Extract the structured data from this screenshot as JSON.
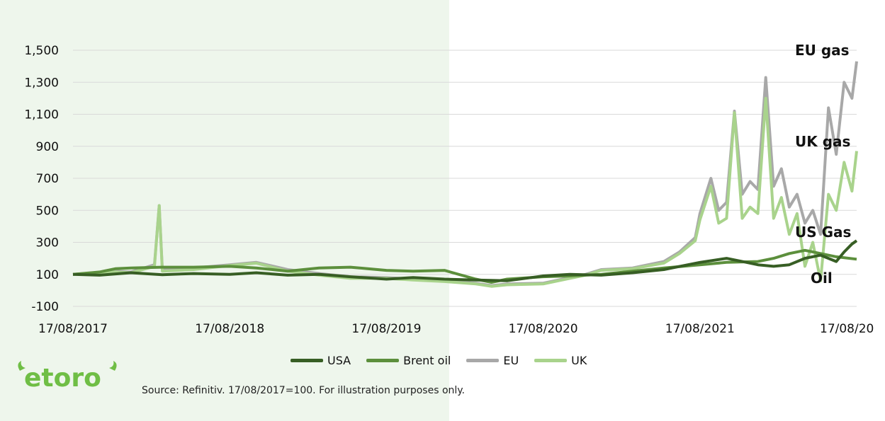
{
  "colors": {
    "highlight_band": "#eef6ec",
    "usa": "#375e24",
    "brent": "#5c8f3c",
    "eu": "#a8a8a8",
    "uk": "#a9d38c",
    "grid": "#d9d9d9",
    "logo": "#6fbe45"
  },
  "logo": {
    "name": "etoro-logo",
    "text": "etoro"
  },
  "source_note": "Source: Refinitiv. 17/08/2017=100. For illustration purposes only.",
  "annotations": {
    "eu": "EU gas",
    "uk": "UK gas",
    "us": "US Gas",
    "oil": "Oil"
  },
  "chart_data": {
    "type": "line",
    "x_tick_labels": [
      "17/08/2017",
      "17/08/2018",
      "17/08/2019",
      "17/08/2020",
      "17/08/2021",
      "17/08/20"
    ],
    "y_tick_labels": [
      "-100",
      "100",
      "300",
      "500",
      "700",
      "900",
      "1,100",
      "1,300",
      "1,500"
    ],
    "ylim": [
      -100,
      1500
    ],
    "xlim": [
      2017.63,
      2022.63
    ],
    "highlight_range": [
      2017.63,
      2020.03
    ],
    "grid": true,
    "legend_position": "bottom",
    "series": [
      {
        "name": "USA",
        "color_key": "usa",
        "x": [
          2017.63,
          2017.8,
          2018.0,
          2018.2,
          2018.4,
          2018.63,
          2018.8,
          2019.0,
          2019.2,
          2019.4,
          2019.63,
          2019.8,
          2020.0,
          2020.2,
          2020.4,
          2020.63,
          2020.8,
          2021.0,
          2021.2,
          2021.4,
          2021.63,
          2021.8,
          2021.9,
          2022.0,
          2022.1,
          2022.2,
          2022.3,
          2022.4,
          2022.5,
          2022.55,
          2022.6,
          2022.63
        ],
        "y": [
          100,
          95,
          110,
          98,
          105,
          100,
          110,
          95,
          100,
          85,
          70,
          80,
          70,
          65,
          60,
          90,
          100,
          95,
          110,
          130,
          175,
          200,
          180,
          160,
          150,
          160,
          200,
          220,
          180,
          240,
          290,
          310
        ]
      },
      {
        "name": "Brent oil",
        "color_key": "brent",
        "x": [
          2017.63,
          2017.8,
          2017.9,
          2018.0,
          2018.2,
          2018.4,
          2018.63,
          2018.8,
          2019.0,
          2019.2,
          2019.4,
          2019.63,
          2019.8,
          2020.0,
          2020.2,
          2020.3,
          2020.4,
          2020.63,
          2020.8,
          2021.0,
          2021.2,
          2021.4,
          2021.63,
          2021.8,
          2022.0,
          2022.1,
          2022.2,
          2022.3,
          2022.4,
          2022.5,
          2022.63
        ],
        "y": [
          100,
          115,
          135,
          140,
          145,
          145,
          150,
          140,
          120,
          140,
          145,
          125,
          120,
          125,
          70,
          50,
          70,
          85,
          90,
          100,
          120,
          140,
          160,
          175,
          180,
          200,
          230,
          250,
          230,
          210,
          195
        ]
      },
      {
        "name": "EU",
        "color_key": "eu",
        "x": [
          2017.63,
          2017.9,
          2018.0,
          2018.15,
          2018.18,
          2018.2,
          2018.4,
          2018.63,
          2018.8,
          2019.0,
          2019.2,
          2019.4,
          2019.63,
          2019.8,
          2020.0,
          2020.2,
          2020.3,
          2020.4,
          2020.63,
          2020.8,
          2020.9,
          2021.0,
          2021.2,
          2021.4,
          2021.5,
          2021.6,
          2021.63,
          2021.7,
          2021.75,
          2021.8,
          2021.85,
          2021.9,
          2021.95,
          2022.0,
          2022.05,
          2022.1,
          2022.15,
          2022.2,
          2022.25,
          2022.3,
          2022.35,
          2022.4,
          2022.45,
          2022.5,
          2022.55,
          2022.6,
          2022.63
        ],
        "y": [
          100,
          120,
          115,
          160,
          530,
          130,
          140,
          160,
          175,
          130,
          105,
          85,
          80,
          70,
          60,
          45,
          30,
          40,
          45,
          80,
          100,
          130,
          140,
          180,
          240,
          330,
          480,
          700,
          500,
          550,
          1120,
          600,
          680,
          630,
          1330,
          650,
          760,
          520,
          600,
          420,
          500,
          350,
          1140,
          850,
          1300,
          1200,
          1430
        ]
      },
      {
        "name": "UK",
        "color_key": "uk",
        "x": [
          2017.63,
          2017.9,
          2018.0,
          2018.15,
          2018.18,
          2018.2,
          2018.4,
          2018.63,
          2018.8,
          2019.0,
          2019.2,
          2019.4,
          2019.63,
          2019.8,
          2020.0,
          2020.2,
          2020.3,
          2020.4,
          2020.63,
          2020.8,
          2020.9,
          2021.0,
          2021.2,
          2021.4,
          2021.5,
          2021.6,
          2021.63,
          2021.7,
          2021.75,
          2021.8,
          2021.85,
          2021.9,
          2021.95,
          2022.0,
          2022.05,
          2022.1,
          2022.15,
          2022.2,
          2022.25,
          2022.3,
          2022.35,
          2022.4,
          2022.45,
          2022.5,
          2022.55,
          2022.6,
          2022.63
        ],
        "y": [
          100,
          115,
          110,
          150,
          530,
          120,
          130,
          155,
          170,
          120,
          95,
          75,
          75,
          65,
          55,
          40,
          25,
          35,
          40,
          75,
          95,
          125,
          135,
          170,
          230,
          310,
          440,
          650,
          420,
          450,
          1110,
          450,
          520,
          480,
          1200,
          450,
          580,
          350,
          480,
          150,
          300,
          60,
          600,
          500,
          800,
          620,
          870
        ]
      }
    ]
  }
}
